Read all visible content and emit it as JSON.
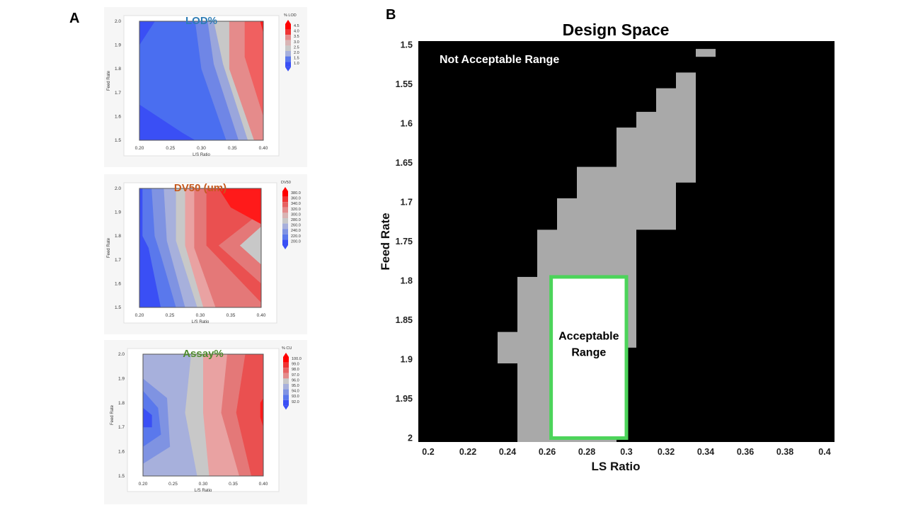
{
  "panels": {
    "a_label": "A",
    "b_label": "B"
  },
  "chart_data": [
    {
      "type": "contour",
      "title": "LOD%",
      "title_color": "#2e7db5",
      "xlabel": "L/S Ratio",
      "ylabel": "Feed Rate",
      "xlim": [
        0.2,
        0.4
      ],
      "ylim": [
        1.5,
        2.0
      ],
      "xticks": [
        "0.20",
        "0.25",
        "0.30",
        "0.35",
        "0.40"
      ],
      "yticks": [
        "1.5",
        "1.6",
        "1.7",
        "1.8",
        "1.9",
        "2.0"
      ],
      "legend_title": "% LOD",
      "legend_levels": [
        "4.5",
        "4.0",
        "3.5",
        "3.0",
        "2.5",
        "2.0",
        "1.5",
        "1.0"
      ],
      "bands": [
        {
          "color": "#4a6ef0",
          "points": [
            [
              0.2,
              1.5
            ],
            [
              0.4,
              1.5
            ],
            [
              0.4,
              2.0
            ],
            [
              0.2,
              2.0
            ]
          ]
        },
        {
          "color": "#3a4ff5",
          "points": [
            [
              0.2,
              1.5
            ],
            [
              0.29,
              1.5
            ],
            [
              0.27,
              1.53
            ],
            [
              0.2,
              1.65
            ]
          ]
        },
        {
          "color": "#3a4ff5",
          "points": [
            [
              0.2,
              2.0
            ],
            [
              0.225,
              2.0
            ],
            [
              0.2,
              1.9
            ]
          ]
        },
        {
          "color": "#6f86e6",
          "points": [
            [
              0.29,
              2.0
            ],
            [
              0.4,
              2.0
            ],
            [
              0.4,
              1.5
            ],
            [
              0.34,
              1.5
            ],
            [
              0.3,
              1.8
            ]
          ]
        },
        {
          "color": "#9aa6dc",
          "points": [
            [
              0.31,
              2.0
            ],
            [
              0.4,
              2.0
            ],
            [
              0.4,
              1.5
            ],
            [
              0.36,
              1.5
            ],
            [
              0.32,
              1.82
            ]
          ]
        },
        {
          "color": "#c8c8c8",
          "points": [
            [
              0.32,
              2.0
            ],
            [
              0.4,
              2.0
            ],
            [
              0.4,
              1.5
            ],
            [
              0.375,
              1.5
            ],
            [
              0.335,
              1.82
            ]
          ]
        },
        {
          "color": "#e58b8b",
          "points": [
            [
              0.345,
              2.0
            ],
            [
              0.4,
              2.0
            ],
            [
              0.4,
              1.5
            ],
            [
              0.385,
              1.5
            ],
            [
              0.345,
              1.8
            ]
          ]
        },
        {
          "color": "#f06060",
          "points": [
            [
              0.37,
              2.0
            ],
            [
              0.4,
              2.0
            ],
            [
              0.4,
              1.6
            ],
            [
              0.37,
              1.85
            ]
          ]
        },
        {
          "color": "#ff1a1a",
          "points": [
            [
              0.395,
              2.0
            ],
            [
              0.4,
              2.0
            ],
            [
              0.4,
              1.95
            ]
          ]
        }
      ]
    },
    {
      "type": "contour",
      "title": "DV50 (um)",
      "title_color": "#c55a20",
      "xlabel": "L/S Ratio",
      "ylabel": "Feed Rate",
      "xlim": [
        0.2,
        0.4
      ],
      "ylim": [
        1.5,
        2.0
      ],
      "xticks": [
        "0.20",
        "0.25",
        "0.30",
        "0.35",
        "0.40"
      ],
      "yticks": [
        "1.5",
        "1.6",
        "1.7",
        "1.8",
        "1.9",
        "2.0"
      ],
      "legend_title": "DV50",
      "legend_levels": [
        "380.0",
        "360.0",
        "340.0",
        "320.0",
        "300.0",
        "280.0",
        "260.0",
        "240.0",
        "220.0",
        "200.0"
      ],
      "bands": [
        {
          "color": "#3a4ff5",
          "points": [
            [
              0.2,
              1.5
            ],
            [
              0.4,
              1.5
            ],
            [
              0.4,
              2.0
            ],
            [
              0.2,
              2.0
            ]
          ]
        },
        {
          "color": "#5a78ec",
          "points": [
            [
              0.205,
              2.0
            ],
            [
              0.4,
              2.0
            ],
            [
              0.4,
              1.5
            ],
            [
              0.235,
              1.5
            ],
            [
              0.215,
              1.75
            ],
            [
              0.205,
              1.8
            ]
          ]
        },
        {
          "color": "#7f93e2",
          "points": [
            [
              0.22,
              2.0
            ],
            [
              0.4,
              2.0
            ],
            [
              0.4,
              1.5
            ],
            [
              0.26,
              1.5
            ],
            [
              0.235,
              1.72
            ],
            [
              0.225,
              1.8
            ]
          ]
        },
        {
          "color": "#a7b0dc",
          "points": [
            [
              0.24,
              2.0
            ],
            [
              0.4,
              2.0
            ],
            [
              0.4,
              1.5
            ],
            [
              0.275,
              1.5
            ],
            [
              0.245,
              1.78
            ]
          ]
        },
        {
          "color": "#c8c8c8",
          "points": [
            [
              0.26,
              2.0
            ],
            [
              0.4,
              2.0
            ],
            [
              0.4,
              1.5
            ],
            [
              0.295,
              1.5
            ],
            [
              0.26,
              1.78
            ]
          ]
        },
        {
          "color": "#e9a2a2",
          "points": [
            [
              0.275,
              2.0
            ],
            [
              0.4,
              2.0
            ],
            [
              0.4,
              1.5
            ],
            [
              0.305,
              1.5
            ],
            [
              0.275,
              1.76
            ]
          ]
        },
        {
          "color": "#e47878",
          "points": [
            [
              0.29,
              2.0
            ],
            [
              0.4,
              2.0
            ],
            [
              0.4,
              1.5
            ],
            [
              0.325,
              1.5
            ],
            [
              0.29,
              1.75
            ]
          ]
        },
        {
          "color": "#ea5050",
          "points": [
            [
              0.31,
              2.0
            ],
            [
              0.4,
              2.0
            ],
            [
              0.4,
              1.52
            ],
            [
              0.31,
              1.76
            ]
          ]
        },
        {
          "color": "#e47878",
          "points": [
            [
              0.33,
              1.76
            ],
            [
              0.4,
              1.6
            ],
            [
              0.4,
              1.9
            ]
          ]
        },
        {
          "color": "#c8c8c8",
          "points": [
            [
              0.365,
              1.76
            ],
            [
              0.4,
              1.68
            ],
            [
              0.4,
              1.84
            ]
          ]
        },
        {
          "color": "#ff1a1a",
          "points": [
            [
              0.33,
              2.0
            ],
            [
              0.4,
              2.0
            ],
            [
              0.4,
              1.85
            ],
            [
              0.35,
              1.92
            ]
          ]
        }
      ]
    },
    {
      "type": "contour",
      "title": "Assay%",
      "title_color": "#4e8a2e",
      "xlabel": "L/S Ratio",
      "ylabel": "Feed Rate",
      "xlim": [
        0.2,
        0.4
      ],
      "ylim": [
        1.5,
        2.0
      ],
      "xticks": [
        "0.20",
        "0.25",
        "0.30",
        "0.35",
        "0.40"
      ],
      "yticks": [
        "1.5",
        "1.6",
        "1.7",
        "1.8",
        "1.9",
        "2.0"
      ],
      "legend_title": "% CU",
      "legend_levels": [
        "100.0",
        "99.0",
        "98.0",
        "97.0",
        "96.0",
        "95.0",
        "94.0",
        "93.0",
        "92.0"
      ],
      "bands": [
        {
          "color": "#a7b0dc",
          "points": [
            [
              0.2,
              1.5
            ],
            [
              0.4,
              1.5
            ],
            [
              0.4,
              2.0
            ],
            [
              0.2,
              2.0
            ]
          ]
        },
        {
          "color": "#7f93e2",
          "points": [
            [
              0.2,
              1.9
            ],
            [
              0.24,
              1.82
            ],
            [
              0.245,
              1.62
            ],
            [
              0.2,
              1.55
            ]
          ]
        },
        {
          "color": "#5a78ec",
          "points": [
            [
              0.2,
              1.85
            ],
            [
              0.225,
              1.78
            ],
            [
              0.23,
              1.67
            ],
            [
              0.2,
              1.62
            ]
          ]
        },
        {
          "color": "#3a4ff5",
          "points": [
            [
              0.2,
              1.78
            ],
            [
              0.215,
              1.75
            ],
            [
              0.215,
              1.7
            ],
            [
              0.2,
              1.7
            ]
          ]
        },
        {
          "color": "#c8c8c8",
          "points": [
            [
              0.28,
              2.0
            ],
            [
              0.4,
              2.0
            ],
            [
              0.4,
              1.5
            ],
            [
              0.29,
              1.5
            ],
            [
              0.27,
              1.76
            ]
          ]
        },
        {
          "color": "#e9a2a2",
          "points": [
            [
              0.3,
              2.0
            ],
            [
              0.4,
              2.0
            ],
            [
              0.4,
              1.5
            ],
            [
              0.31,
              1.5
            ],
            [
              0.3,
              1.76
            ]
          ]
        },
        {
          "color": "#e47878",
          "points": [
            [
              0.34,
              2.0
            ],
            [
              0.4,
              2.0
            ],
            [
              0.4,
              1.5
            ],
            [
              0.36,
              1.5
            ],
            [
              0.33,
              1.76
            ]
          ]
        },
        {
          "color": "#ea5050",
          "points": [
            [
              0.37,
              2.0
            ],
            [
              0.4,
              2.0
            ],
            [
              0.4,
              1.5
            ],
            [
              0.38,
              1.5
            ],
            [
              0.355,
              1.76
            ]
          ]
        },
        {
          "color": "#ff1a1a",
          "points": [
            [
              0.395,
              1.8
            ],
            [
              0.4,
              1.82
            ],
            [
              0.4,
              1.7
            ],
            [
              0.395,
              1.74
            ]
          ]
        }
      ]
    },
    {
      "type": "heatmap",
      "title": "Design Space",
      "xlabel": "LS Ratio",
      "ylabel": "Feed Rate",
      "xlim": [
        0.195,
        0.405
      ],
      "ylim": [
        1.495,
        2.005
      ],
      "y_inverted": true,
      "xticks": [
        "0.2",
        "0.22",
        "0.24",
        "0.26",
        "0.28",
        "0.3",
        "0.32",
        "0.34",
        "0.36",
        "0.38",
        "0.4"
      ],
      "yticks": [
        "1.5",
        "1.55",
        "1.6",
        "1.65",
        "1.7",
        "1.75",
        "1.8",
        "1.85",
        "1.9",
        "1.95",
        "2"
      ],
      "background_color": "#000000",
      "grey_color": "#a9a9a9",
      "grey_cells": [
        {
          "x": [
            0.335,
            0.345
          ],
          "y": [
            1.505,
            1.515
          ]
        },
        {
          "x": [
            0.325,
            0.335
          ],
          "y": [
            1.535,
            1.675
          ]
        },
        {
          "x": [
            0.315,
            0.325
          ],
          "y": [
            1.555,
            1.735
          ]
        },
        {
          "x": [
            0.305,
            0.315
          ],
          "y": [
            1.585,
            1.735
          ]
        },
        {
          "x": [
            0.295,
            0.305
          ],
          "y": [
            1.605,
            1.885
          ]
        },
        {
          "x": [
            0.285,
            0.295
          ],
          "y": [
            1.655,
            2.005
          ]
        },
        {
          "x": [
            0.275,
            0.285
          ],
          "y": [
            1.655,
            2.005
          ]
        },
        {
          "x": [
            0.265,
            0.275
          ],
          "y": [
            1.695,
            2.005
          ]
        },
        {
          "x": [
            0.255,
            0.265
          ],
          "y": [
            1.735,
            2.005
          ]
        },
        {
          "x": [
            0.245,
            0.255
          ],
          "y": [
            1.795,
            2.005
          ]
        },
        {
          "x": [
            0.235,
            0.245
          ],
          "y": [
            1.865,
            1.905
          ]
        }
      ],
      "acceptable_region": {
        "x": [
          0.262,
          0.3
        ],
        "y": [
          1.795,
          2.0
        ],
        "fill": "#ffffff",
        "border": "#4cd45a"
      },
      "annotations": {
        "not_acceptable": "Not Acceptable Range",
        "acceptable_line1": "Acceptable",
        "acceptable_line2": "Range"
      }
    }
  ]
}
